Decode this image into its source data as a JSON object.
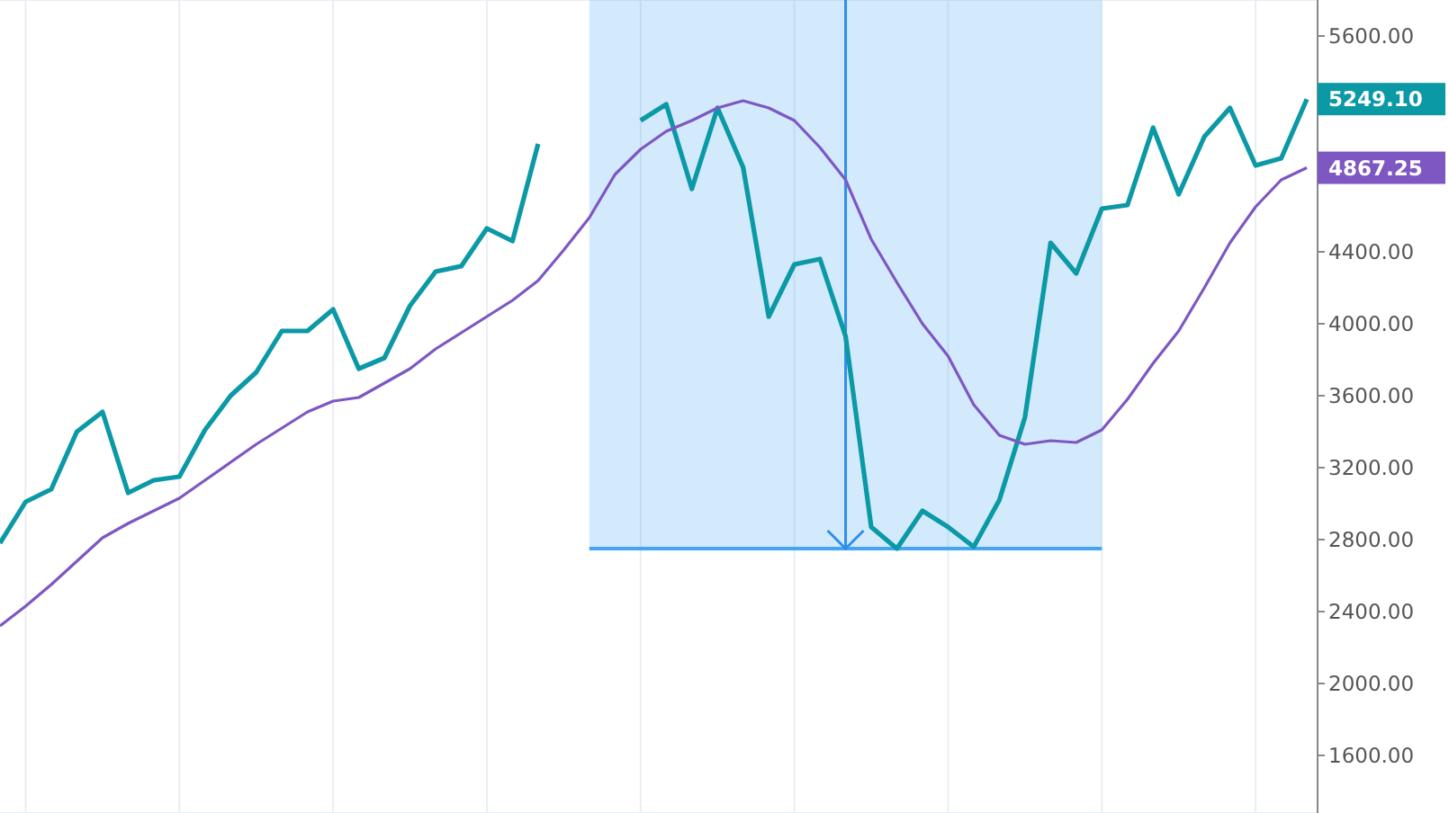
{
  "chart_data": {
    "type": "line",
    "categories": [
      null,
      null,
      null,
      null,
      null,
      null,
      null,
      null,
      null,
      null,
      null,
      null,
      null,
      null,
      null,
      null,
      null,
      null,
      null,
      null,
      null,
      null,
      null,
      null,
      null,
      null,
      null,
      null,
      null,
      null,
      null,
      null,
      null,
      null,
      null,
      null,
      null,
      null,
      null,
      null,
      null,
      null,
      null,
      null,
      null,
      null,
      null,
      null,
      null,
      null,
      null,
      null
    ],
    "series": [
      {
        "color": "#0b99a6",
        "values": [
          2780,
          3010,
          3080,
          3400,
          3510,
          3060,
          3130,
          3150,
          3410,
          3600,
          3730,
          3960,
          3960,
          4080,
          3750,
          3810,
          4100,
          4290,
          4320,
          4530,
          4460,
          5000,
          null,
          null,
          null,
          5130,
          5220,
          4750,
          5200,
          4870,
          4040,
          4330,
          4360,
          3930,
          2870,
          2750,
          2960,
          2870,
          2760,
          3020,
          3480,
          4450,
          4280,
          4640,
          4660,
          5090,
          4720,
          5040,
          5200,
          4880,
          4920,
          5249.1
        ],
        "value_labels": [
          null,
          null,
          null,
          null,
          null,
          null,
          null,
          null,
          null,
          null,
          null,
          null,
          null,
          null,
          null,
          null,
          null,
          null,
          null,
          null,
          null,
          null,
          null,
          null,
          null,
          null,
          null,
          null,
          null,
          null,
          null,
          null,
          null,
          null,
          null,
          null,
          null,
          null,
          null,
          null,
          null,
          null,
          null,
          null,
          null,
          null,
          null,
          null,
          null,
          null,
          null,
          "5249.10"
        ]
      },
      {
        "color": "#7e57c2",
        "values": [
          2320,
          2430,
          2550,
          2680,
          2810,
          2890,
          2960,
          3030,
          3130,
          3230,
          3330,
          3420,
          3510,
          3570,
          3590,
          3670,
          3750,
          3860,
          3950,
          4040,
          4130,
          4240,
          4410,
          4590,
          4830,
          4970,
          5070,
          5130,
          5200,
          5240,
          5200,
          5130,
          4980,
          4800,
          4470,
          4230,
          4000,
          3820,
          3550,
          3380,
          3330,
          3350,
          3340,
          3410,
          3580,
          3780,
          3960,
          4200,
          4450,
          4650,
          4800,
          4867.25
        ],
        "value_labels": [
          null,
          null,
          null,
          null,
          null,
          null,
          null,
          null,
          null,
          null,
          null,
          null,
          null,
          null,
          null,
          null,
          null,
          null,
          null,
          null,
          null,
          null,
          null,
          null,
          null,
          null,
          null,
          null,
          null,
          null,
          null,
          null,
          null,
          null,
          null,
          null,
          null,
          null,
          null,
          null,
          null,
          null,
          null,
          null,
          null,
          null,
          null,
          null,
          null,
          null,
          null,
          "4867.25"
        ]
      }
    ],
    "ylim": [
      1280,
      5800
    ],
    "yticks": [
      {
        "value": 1600,
        "label": "1600.00"
      },
      {
        "value": 2000,
        "label": "2000.00"
      },
      {
        "value": 2400,
        "label": "2400.00"
      },
      {
        "value": 2800,
        "label": "2800.00"
      },
      {
        "value": 3200,
        "label": "3200.00"
      },
      {
        "value": 3600,
        "label": "3600.00"
      },
      {
        "value": 4000,
        "label": "4000.00"
      },
      {
        "value": 4400,
        "label": "4400.00"
      },
      {
        "value": 4800,
        "label": null
      },
      {
        "value": 5200,
        "label": null
      },
      {
        "value": 5600,
        "label": "5600.00"
      }
    ],
    "grid": true,
    "marker": "none",
    "line_style": "solid"
  }
}
